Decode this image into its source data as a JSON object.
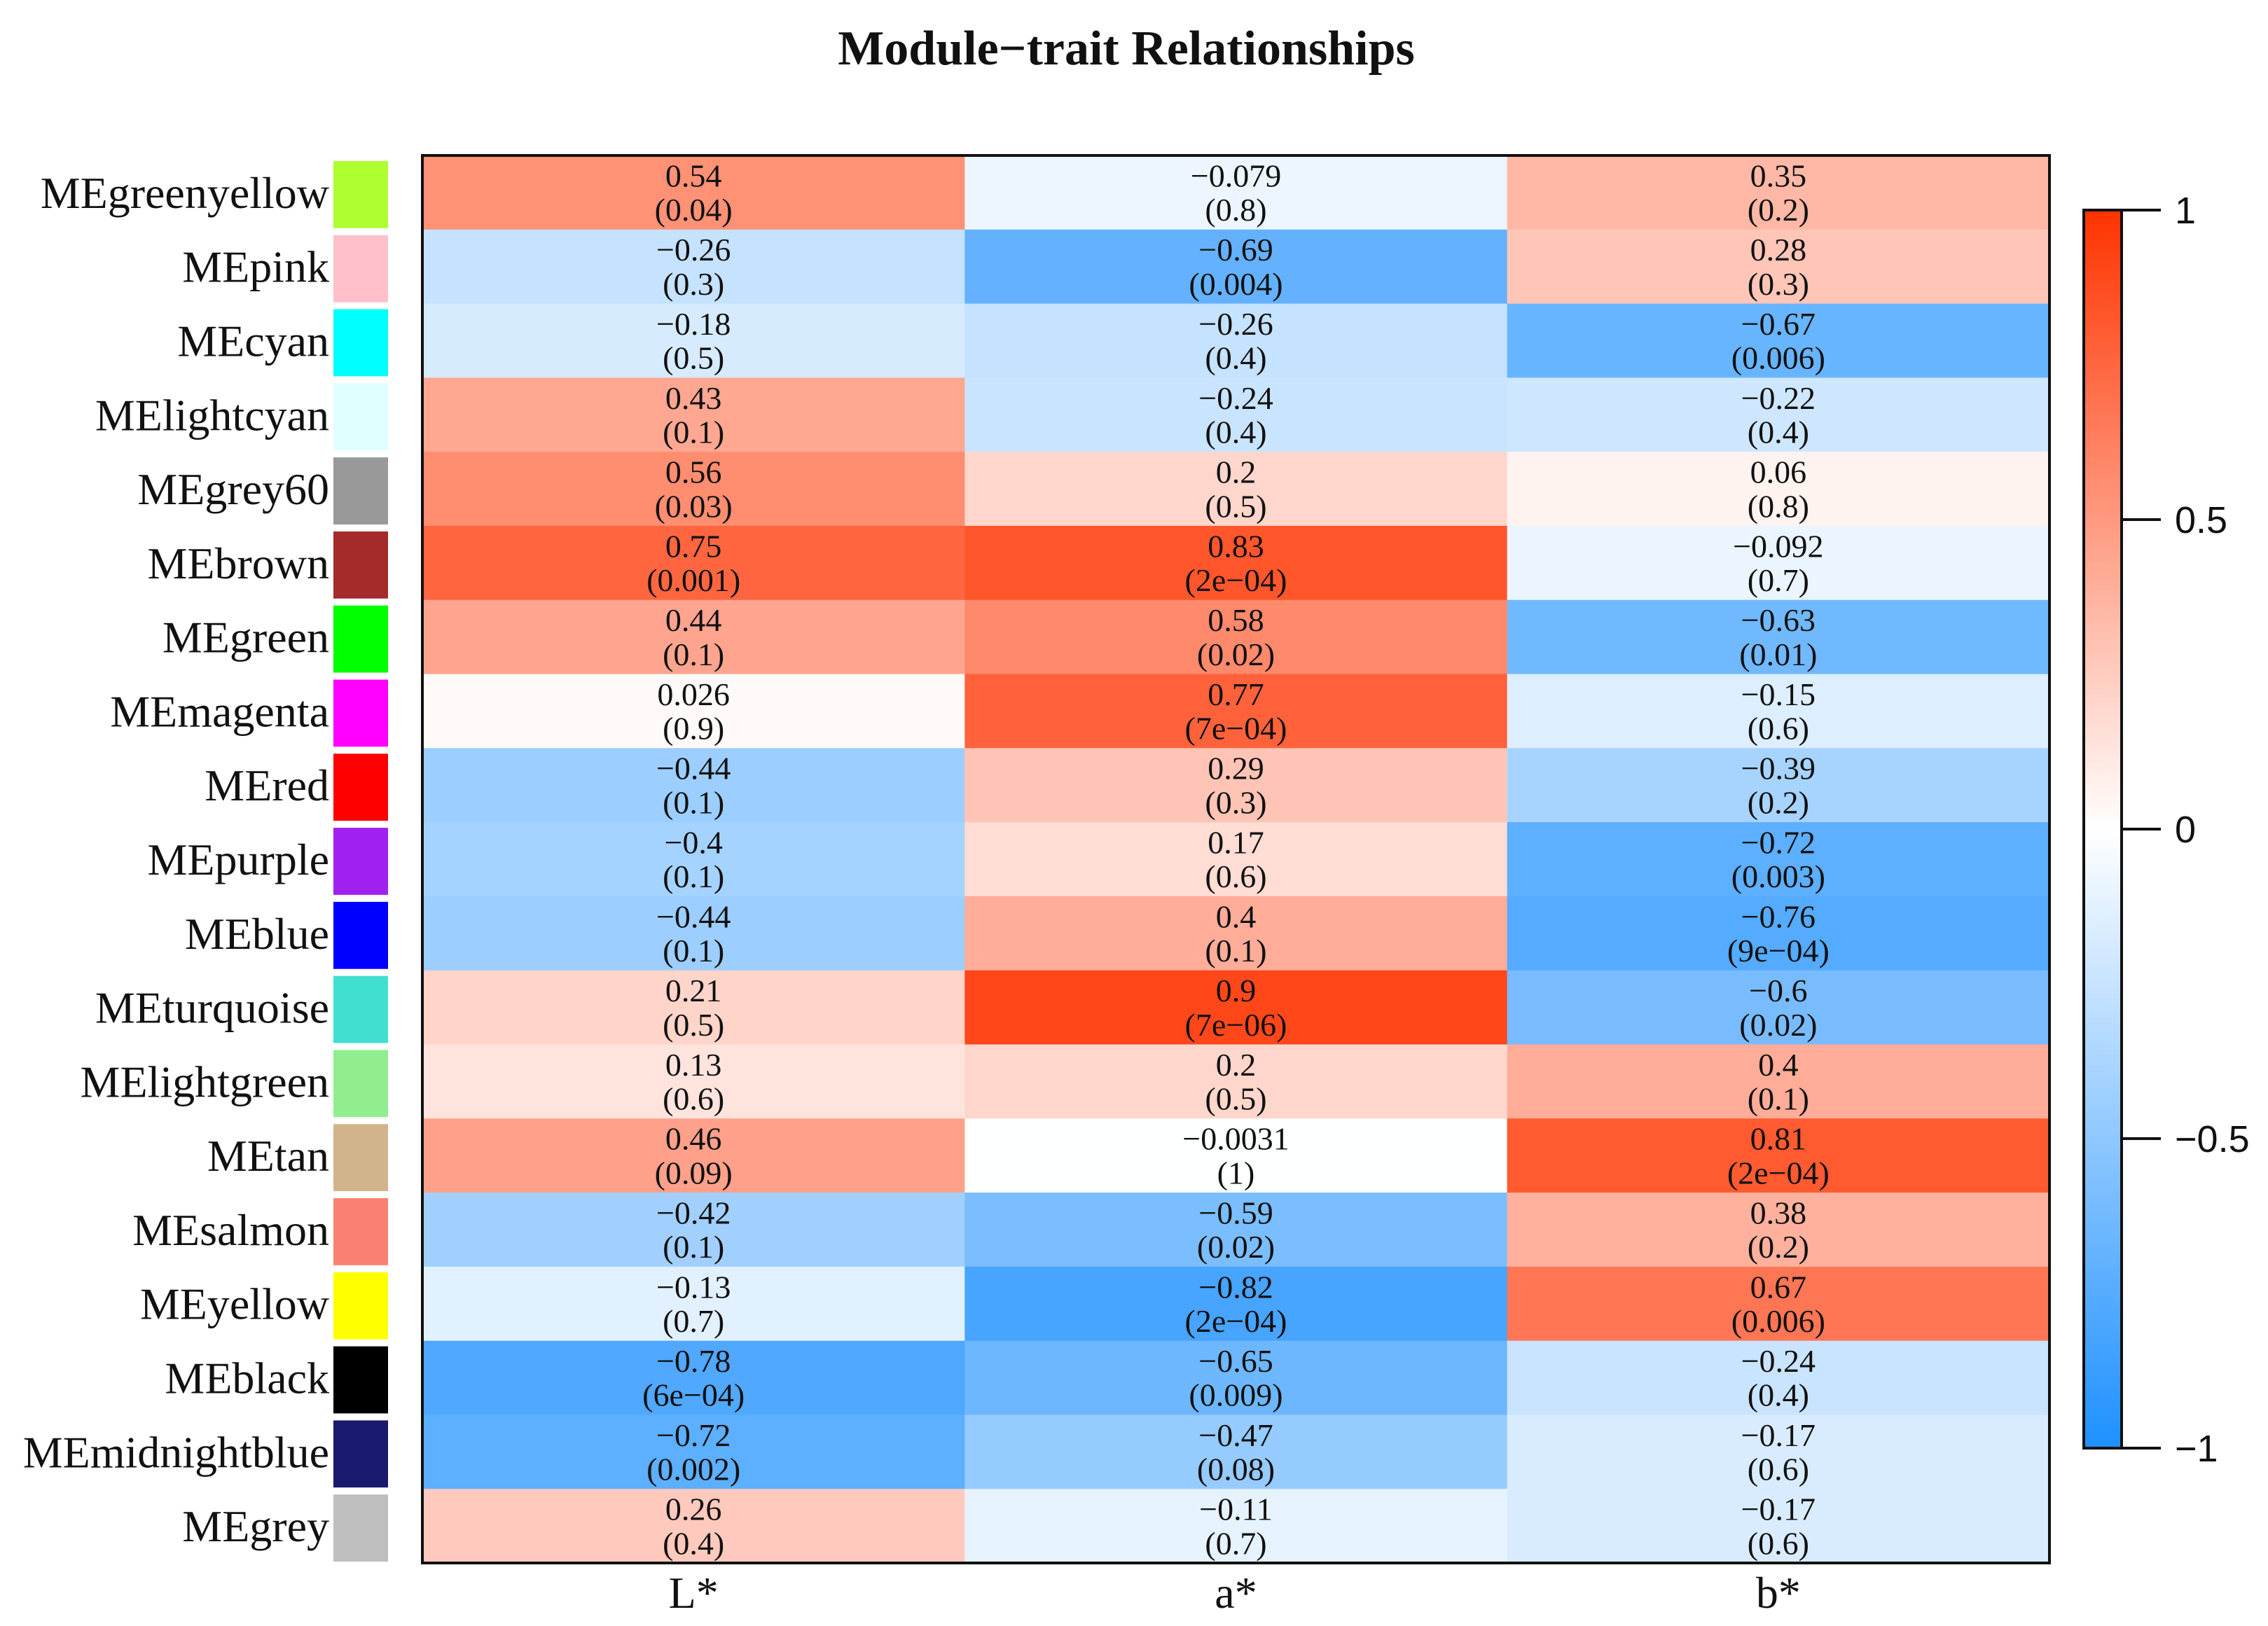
{
  "chart_data": {
    "type": "heatmap",
    "title": "Module−trait Relationships",
    "columns": [
      "L*",
      "a*",
      "b*"
    ],
    "rows": [
      {
        "label": "MEgreenyellow",
        "swatch": "#adff2f",
        "values": [
          0.54,
          -0.079,
          0.35
        ],
        "cell_text": [
          [
            "0.54",
            "(0.04)"
          ],
          [
            "−0.079",
            "(0.8)"
          ],
          [
            "0.35",
            "(0.2)"
          ]
        ]
      },
      {
        "label": "MEpink",
        "swatch": "#ffc0cb",
        "values": [
          -0.26,
          -0.69,
          0.28
        ],
        "cell_text": [
          [
            "−0.26",
            "(0.3)"
          ],
          [
            "−0.69",
            "(0.004)"
          ],
          [
            "0.28",
            "(0.3)"
          ]
        ]
      },
      {
        "label": "MEcyan",
        "swatch": "#00ffff",
        "values": [
          -0.18,
          -0.26,
          -0.67
        ],
        "cell_text": [
          [
            "−0.18",
            "(0.5)"
          ],
          [
            "−0.26",
            "(0.4)"
          ],
          [
            "−0.67",
            "(0.006)"
          ]
        ]
      },
      {
        "label": "MElightcyan",
        "swatch": "#e0ffff",
        "values": [
          0.43,
          -0.24,
          -0.22
        ],
        "cell_text": [
          [
            "0.43",
            "(0.1)"
          ],
          [
            "−0.24",
            "(0.4)"
          ],
          [
            "−0.22",
            "(0.4)"
          ]
        ]
      },
      {
        "label": "MEgrey60",
        "swatch": "#999999",
        "values": [
          0.56,
          0.2,
          0.06
        ],
        "cell_text": [
          [
            "0.56",
            "(0.03)"
          ],
          [
            "0.2",
            "(0.5)"
          ],
          [
            "0.06",
            "(0.8)"
          ]
        ]
      },
      {
        "label": "MEbrown",
        "swatch": "#a52a2a",
        "values": [
          0.75,
          0.83,
          -0.092
        ],
        "cell_text": [
          [
            "0.75",
            "(0.001)"
          ],
          [
            "0.83",
            "(2e−04)"
          ],
          [
            "−0.092",
            "(0.7)"
          ]
        ]
      },
      {
        "label": "MEgreen",
        "swatch": "#00ff00",
        "values": [
          0.44,
          0.58,
          -0.63
        ],
        "cell_text": [
          [
            "0.44",
            "(0.1)"
          ],
          [
            "0.58",
            "(0.02)"
          ],
          [
            "−0.63",
            "(0.01)"
          ]
        ]
      },
      {
        "label": "MEmagenta",
        "swatch": "#ff00ff",
        "values": [
          0.026,
          0.77,
          -0.15
        ],
        "cell_text": [
          [
            "0.026",
            "(0.9)"
          ],
          [
            "0.77",
            "(7e−04)"
          ],
          [
            "−0.15",
            "(0.6)"
          ]
        ]
      },
      {
        "label": "MEred",
        "swatch": "#ff0000",
        "values": [
          -0.44,
          0.29,
          -0.39
        ],
        "cell_text": [
          [
            "−0.44",
            "(0.1)"
          ],
          [
            "0.29",
            "(0.3)"
          ],
          [
            "−0.39",
            "(0.2)"
          ]
        ]
      },
      {
        "label": "MEpurple",
        "swatch": "#a020f0",
        "values": [
          -0.4,
          0.17,
          -0.72
        ],
        "cell_text": [
          [
            "−0.4",
            "(0.1)"
          ],
          [
            "0.17",
            "(0.6)"
          ],
          [
            "−0.72",
            "(0.003)"
          ]
        ]
      },
      {
        "label": "MEblue",
        "swatch": "#0000ff",
        "values": [
          -0.44,
          0.4,
          -0.76
        ],
        "cell_text": [
          [
            "−0.44",
            "(0.1)"
          ],
          [
            "0.4",
            "(0.1)"
          ],
          [
            "−0.76",
            "(9e−04)"
          ]
        ]
      },
      {
        "label": "MEturquoise",
        "swatch": "#40e0d0",
        "values": [
          0.21,
          0.9,
          -0.6
        ],
        "cell_text": [
          [
            "0.21",
            "(0.5)"
          ],
          [
            "0.9",
            "(7e−06)"
          ],
          [
            "−0.6",
            "(0.02)"
          ]
        ]
      },
      {
        "label": "MElightgreen",
        "swatch": "#90ee90",
        "values": [
          0.13,
          0.2,
          0.4
        ],
        "cell_text": [
          [
            "0.13",
            "(0.6)"
          ],
          [
            "0.2",
            "(0.5)"
          ],
          [
            "0.4",
            "(0.1)"
          ]
        ]
      },
      {
        "label": "MEtan",
        "swatch": "#d2b48c",
        "values": [
          0.46,
          -0.0031,
          0.81
        ],
        "cell_text": [
          [
            "0.46",
            "(0.09)"
          ],
          [
            "−0.0031",
            "(1)"
          ],
          [
            "0.81",
            "(2e−04)"
          ]
        ]
      },
      {
        "label": "MEsalmon",
        "swatch": "#fa8072",
        "values": [
          -0.42,
          -0.59,
          0.38
        ],
        "cell_text": [
          [
            "−0.42",
            "(0.1)"
          ],
          [
            "−0.59",
            "(0.02)"
          ],
          [
            "0.38",
            "(0.2)"
          ]
        ]
      },
      {
        "label": "MEyellow",
        "swatch": "#ffff00",
        "values": [
          -0.13,
          -0.82,
          0.67
        ],
        "cell_text": [
          [
            "−0.13",
            "(0.7)"
          ],
          [
            "−0.82",
            "(2e−04)"
          ],
          [
            "0.67",
            "(0.006)"
          ]
        ]
      },
      {
        "label": "MEblack",
        "swatch": "#000000",
        "values": [
          -0.78,
          -0.65,
          -0.24
        ],
        "cell_text": [
          [
            "−0.78",
            "(6e−04)"
          ],
          [
            "−0.65",
            "(0.009)"
          ],
          [
            "−0.24",
            "(0.4)"
          ]
        ]
      },
      {
        "label": "MEmidnightblue",
        "swatch": "#191970",
        "values": [
          -0.72,
          -0.47,
          -0.17
        ],
        "cell_text": [
          [
            "−0.72",
            "(0.002)"
          ],
          [
            "−0.47",
            "(0.08)"
          ],
          [
            "−0.17",
            "(0.6)"
          ]
        ]
      },
      {
        "label": "MEgrey",
        "swatch": "#bebebe",
        "values": [
          0.26,
          -0.11,
          -0.17
        ],
        "cell_text": [
          [
            "0.26",
            "(0.4)"
          ],
          [
            "−0.11",
            "(0.7)"
          ],
          [
            "−0.17",
            "(0.6)"
          ]
        ]
      }
    ],
    "color_scale": {
      "range": [
        -1,
        1
      ],
      "ticks": [
        1,
        0.5,
        0,
        -0.5,
        -1
      ],
      "tick_labels": [
        "1",
        "0.5",
        "0",
        "−0.5",
        "−1"
      ],
      "colors": {
        "negative": "#1e90ff",
        "zero": "#ffffff",
        "positive": "#ff3300"
      }
    }
  }
}
